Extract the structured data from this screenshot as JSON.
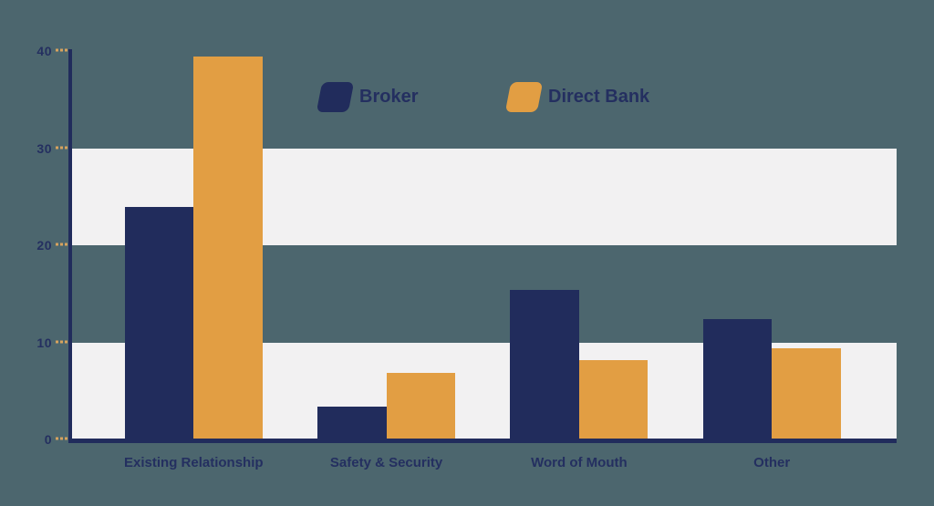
{
  "chart_data": {
    "type": "bar",
    "title": "",
    "xlabel": "",
    "ylabel": "",
    "categories": [
      "Existing Relationship",
      "Safety & Security",
      "Word of Mouth",
      "Other"
    ],
    "series": [
      {
        "name": "Broker",
        "color": "#212c5c",
        "values": [
          23.9,
          3.4,
          15.4,
          12.4
        ]
      },
      {
        "name": "Direct Bank",
        "color": "#e29e43",
        "values": [
          39.4,
          6.9,
          8.2,
          9.4
        ]
      }
    ],
    "y_ticks": [
      0,
      10,
      20,
      30,
      40
    ],
    "ylim": [
      0,
      40
    ],
    "legend_position": "top-center",
    "grid": "alternating horizontal white bands",
    "stripe_bands": [
      [
        0,
        10
      ],
      [
        20,
        30
      ]
    ]
  },
  "colors": {
    "background": "#4c666e",
    "band": "#f2f1f2",
    "axis": "#212c5c",
    "tick_dash": "#d8a35e",
    "text": "#242f60",
    "broker": "#212c5c",
    "direct_bank": "#e29e43"
  }
}
